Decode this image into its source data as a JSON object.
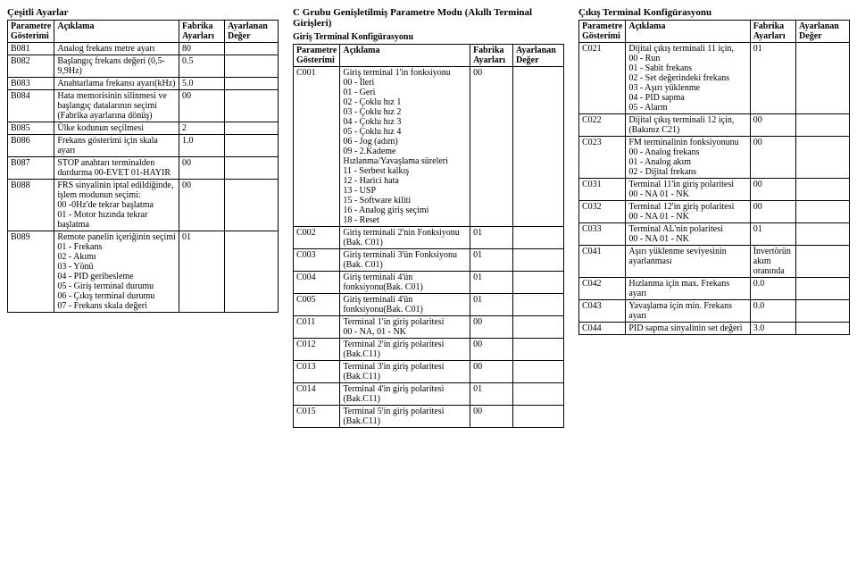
{
  "col1": {
    "title": "Çeşitli Ayarlar",
    "headers": [
      "Parametre Gösterimi",
      "Açıklama",
      "Fabrika Ayarları",
      "Ayarlanan Değer"
    ],
    "rows": [
      [
        "B081",
        "Analog frekans metre ayarı",
        "80",
        ""
      ],
      [
        "B082",
        "Başlangıç frekans değeri (0,5-9,9Hz)",
        "0.5",
        ""
      ],
      [
        "B083",
        "Anahtarlama frekansı ayarı(kHz)",
        "5.0",
        ""
      ],
      [
        "B084",
        "Hata memorisinin silinmesi ve başlangıç datalarının seçimi (Fabrika ayarlarına dönüş)",
        "00",
        ""
      ],
      [
        "B085",
        "Ülke kodunun seçilmesi",
        "2",
        ""
      ],
      [
        "B086",
        "Frekans gösterimi için skala ayarı",
        "1.0",
        ""
      ],
      [
        "B087",
        "STOP anahtarı terminalden durdurma 00-EVET 01-HAYIR",
        "00",
        ""
      ],
      [
        "B088",
        "FRS sinyalinin iptal edildiğinde, işlem modunun seçimi:\n00 -0Hz'de tekrar başlatma\n01 - Motor hızında tekrar başlatma",
        "00",
        ""
      ],
      [
        "B089",
        "Remote panelin içeriğinin seçimi\n01 - Frekans\n02 - Akımı\n03 - Yönü\n04 - PID geribesleme\n05 - Giriş terminal durumu\n06 - Çıkış terminal durumu\n07 - Frekans skala değeri",
        "01",
        ""
      ]
    ]
  },
  "col2": {
    "title": "C Grubu Genişletilmiş Parametre Modu (Akıllı Terminal Girişleri)",
    "subtitle": "Giriş Terminal Konfigürasyonu",
    "headers": [
      "Parametre Gösterimi",
      "Açıklama",
      "Fabrika Ayarları",
      "Ayarlanan Değer"
    ],
    "rows": [
      [
        "C001",
        "Giriş terminal 1'in fonksiyonu\n00 - İleri\n01 - Geri\n02 - Çoklu hız 1\n03 - Çoklu hız 2\n04 - Çoklu hız 3\n05 - Çoklu hız 4\n06 - Jog (adım)\n09 - 2.Kademe Hızlanma/Yavaşlama süreleri\n11 - Serbest kalkış\n12 - Harici hata\n13 - USP\n15 - Software kiliti\n16 - Analog giriş seçimi\n18 - Reset",
        "00",
        ""
      ],
      [
        "C002",
        "Giriş terminali 2'nin Fonksiyonu (Bak. C01)",
        "01",
        ""
      ],
      [
        "C003",
        "Giriş terminali 3'ün Fonksiyonu (Bak. C01)",
        "01",
        ""
      ],
      [
        "C004",
        "Giriş terminali 4'ün fonksiyonu(Bak. C01)",
        "01",
        ""
      ],
      [
        "C005",
        "Giriş terminali 4'ün fonksiyonu(Bak. C01)",
        "01",
        ""
      ],
      [
        "C011",
        "Terminal 1'in giriş polaritesi\n00 - NA, 01 - NK",
        "00",
        ""
      ],
      [
        "C012",
        "Terminal 2'in giriş polaritesi (Bak.C11)",
        "00",
        ""
      ],
      [
        "C013",
        "Terminal 3'in giriş polaritesi (Bak.C11)",
        "00",
        ""
      ],
      [
        "C014",
        "Terminal 4'in giriş polaritesi (Bak.C11)",
        "01",
        ""
      ],
      [
        "C015",
        "Terminal 5'in giriş polaritesi (Bak.C11)",
        "00",
        ""
      ]
    ]
  },
  "col3": {
    "title": "Çıkış Terminal Konfigürasyonu",
    "headers": [
      "Parametre Gösterimi",
      "Açıklama",
      "Fabrika Ayarları",
      "Ayarlanan Değer"
    ],
    "rows": [
      [
        "C021",
        "Dijital çıkış terminali 11 için,\n00 - Run\n01 - Sabit frekans\n02 - Set değerindeki frekans\n03 - Aşırı yüklenme\n04 - PID sapma\n05 - Alarm",
        "01",
        ""
      ],
      [
        "C022",
        "Dijital çıkış terminali 12 için, (Bakınız C21)",
        "00",
        ""
      ],
      [
        "C023",
        "FM terminalinin fonksiyonunu\n00 - Analog frekans\n01 - Analog akım\n02 - Dijital frekans",
        "00",
        ""
      ],
      [
        "C031",
        "Terminal 11'in giriş polaritesi\n00 - NA  01 - NK",
        "00",
        ""
      ],
      [
        "C032",
        "Terminal 12'in giriş polaritesi\n00 - NA  01 - NK",
        "00",
        ""
      ],
      [
        "C033",
        "Terminal  AL'nin polaritesi\n00 - NA  01 - NK",
        "01",
        ""
      ],
      [
        "C041",
        "Aşırı yüklenme seviyesinin ayarlanması",
        "İnvertörün akım oranında",
        ""
      ],
      [
        "C042",
        "Hızlanma için max. Frekans ayarı",
        "0.0",
        ""
      ],
      [
        "C043",
        "Yavaşlama için min. Frekans ayarı",
        "0.0",
        ""
      ],
      [
        "C044",
        "PID sapma sinyalinin set değeri",
        "3.0",
        ""
      ]
    ]
  }
}
